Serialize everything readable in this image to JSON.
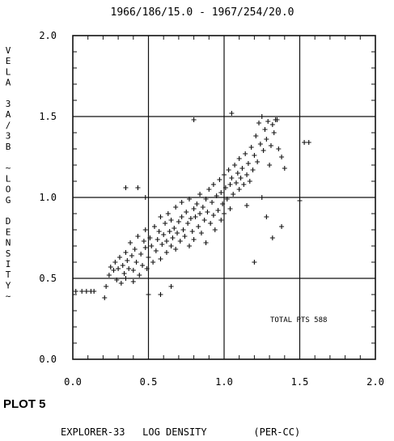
{
  "chart_data": {
    "type": "scatter",
    "title": "1966/186/15.0 - 1967/254/20.0",
    "plot_label": "PLOT 5",
    "xlabel": "EXPLORER-33   LOG DENSITY        (PER-CC)",
    "ylabel": "VELA 3A/3B ~LOG DENSITY~",
    "xlim": [
      0.0,
      2.0
    ],
    "ylim": [
      0.0,
      2.0
    ],
    "x_ticks": [
      "0.0",
      "0.5",
      "1.0",
      "1.5",
      "2.0"
    ],
    "y_ticks": [
      "0.0",
      "0.5",
      "1.0",
      "1.5",
      "2.0"
    ],
    "grid": true,
    "marker": "+",
    "annotation": "TOTAL PTS  588",
    "points": [
      [
        0.02,
        0.42
      ],
      [
        0.06,
        0.42
      ],
      [
        0.09,
        0.42
      ],
      [
        0.12,
        0.42
      ],
      [
        0.14,
        0.42
      ],
      [
        0.21,
        0.38
      ],
      [
        0.22,
        0.45
      ],
      [
        0.24,
        0.52
      ],
      [
        0.25,
        0.57
      ],
      [
        0.27,
        0.55
      ],
      [
        0.28,
        0.6
      ],
      [
        0.29,
        0.49
      ],
      [
        0.3,
        0.56
      ],
      [
        0.31,
        0.63
      ],
      [
        0.32,
        0.47
      ],
      [
        0.33,
        0.58
      ],
      [
        0.34,
        0.53
      ],
      [
        0.35,
        0.66
      ],
      [
        0.35,
        0.5
      ],
      [
        0.36,
        0.61
      ],
      [
        0.37,
        0.56
      ],
      [
        0.38,
        0.72
      ],
      [
        0.39,
        0.64
      ],
      [
        0.4,
        0.55
      ],
      [
        0.4,
        0.48
      ],
      [
        0.41,
        0.68
      ],
      [
        0.42,
        0.6
      ],
      [
        0.43,
        0.76
      ],
      [
        0.44,
        0.52
      ],
      [
        0.45,
        0.65
      ],
      [
        0.46,
        0.58
      ],
      [
        0.47,
        0.73
      ],
      [
        0.48,
        0.69
      ],
      [
        0.48,
        0.8
      ],
      [
        0.49,
        0.56
      ],
      [
        0.5,
        0.63
      ],
      [
        0.51,
        0.75
      ],
      [
        0.52,
        0.7
      ],
      [
        0.53,
        0.6
      ],
      [
        0.54,
        0.82
      ],
      [
        0.55,
        0.67
      ],
      [
        0.56,
        0.74
      ],
      [
        0.57,
        0.79
      ],
      [
        0.58,
        0.62
      ],
      [
        0.58,
        0.88
      ],
      [
        0.59,
        0.71
      ],
      [
        0.6,
        0.77
      ],
      [
        0.61,
        0.84
      ],
      [
        0.62,
        0.66
      ],
      [
        0.62,
        0.73
      ],
      [
        0.63,
        0.9
      ],
      [
        0.64,
        0.79
      ],
      [
        0.65,
        0.7
      ],
      [
        0.65,
        0.86
      ],
      [
        0.66,
        0.75
      ],
      [
        0.67,
        0.81
      ],
      [
        0.68,
        0.94
      ],
      [
        0.68,
        0.68
      ],
      [
        0.69,
        0.78
      ],
      [
        0.7,
        0.85
      ],
      [
        0.71,
        0.73
      ],
      [
        0.72,
        0.88
      ],
      [
        0.72,
        0.97
      ],
      [
        0.73,
        0.8
      ],
      [
        0.74,
        0.76
      ],
      [
        0.75,
        0.91
      ],
      [
        0.76,
        0.84
      ],
      [
        0.77,
        0.7
      ],
      [
        0.77,
        0.99
      ],
      [
        0.78,
        0.87
      ],
      [
        0.79,
        0.79
      ],
      [
        0.8,
        0.93
      ],
      [
        0.8,
        0.74
      ],
      [
        0.81,
        0.88
      ],
      [
        0.82,
        0.96
      ],
      [
        0.83,
        0.82
      ],
      [
        0.84,
        0.9
      ],
      [
        0.84,
        1.02
      ],
      [
        0.85,
        0.78
      ],
      [
        0.86,
        0.94
      ],
      [
        0.87,
        0.86
      ],
      [
        0.88,
        0.99
      ],
      [
        0.88,
        0.72
      ],
      [
        0.89,
        0.91
      ],
      [
        0.9,
        1.05
      ],
      [
        0.91,
        0.84
      ],
      [
        0.92,
        0.97
      ],
      [
        0.93,
        0.89
      ],
      [
        0.93,
        1.08
      ],
      [
        0.94,
        0.8
      ],
      [
        0.95,
        1.01
      ],
      [
        0.96,
        0.92
      ],
      [
        0.97,
        1.11
      ],
      [
        0.98,
        0.86
      ],
      [
        0.98,
        1.03
      ],
      [
        0.99,
        0.96
      ],
      [
        1.0,
        1.14
      ],
      [
        1.0,
        0.9
      ],
      [
        1.01,
        1.06
      ],
      [
        1.02,
        0.99
      ],
      [
        1.03,
        1.17
      ],
      [
        1.04,
        1.08
      ],
      [
        1.04,
        0.93
      ],
      [
        1.05,
        1.12
      ],
      [
        1.06,
        1.02
      ],
      [
        1.07,
        1.2
      ],
      [
        1.08,
        1.09
      ],
      [
        1.09,
        1.15
      ],
      [
        1.1,
        1.05
      ],
      [
        1.1,
        1.24
      ],
      [
        1.11,
        1.12
      ],
      [
        1.12,
        1.18
      ],
      [
        1.13,
        1.08
      ],
      [
        1.14,
        1.27
      ],
      [
        1.15,
        1.14
      ],
      [
        1.16,
        1.21
      ],
      [
        1.17,
        1.1
      ],
      [
        1.18,
        1.31
      ],
      [
        1.19,
        1.17
      ],
      [
        1.2,
        1.26
      ],
      [
        1.21,
        1.38
      ],
      [
        1.22,
        1.22
      ],
      [
        1.23,
        1.46
      ],
      [
        1.24,
        1.33
      ],
      [
        1.25,
        1.5
      ],
      [
        1.26,
        1.29
      ],
      [
        1.27,
        1.42
      ],
      [
        1.28,
        1.36
      ],
      [
        1.29,
        1.47
      ],
      [
        1.3,
        1.2
      ],
      [
        1.31,
        1.32
      ],
      [
        1.32,
        1.45
      ],
      [
        1.33,
        1.4
      ],
      [
        1.34,
        1.48
      ],
      [
        1.35,
        1.48
      ],
      [
        1.36,
        1.3
      ],
      [
        1.38,
        1.25
      ],
      [
        1.4,
        1.18
      ],
      [
        1.2,
        0.6
      ],
      [
        1.05,
        1.52
      ],
      [
        0.8,
        1.48
      ],
      [
        0.5,
        0.4
      ],
      [
        0.58,
        0.4
      ],
      [
        0.35,
        1.06
      ],
      [
        0.43,
        1.06
      ],
      [
        0.48,
        1.0
      ],
      [
        0.65,
        0.45
      ],
      [
        1.5,
        0.98
      ],
      [
        1.53,
        1.34
      ],
      [
        1.56,
        1.34
      ],
      [
        1.28,
        0.88
      ],
      [
        1.38,
        0.82
      ],
      [
        1.32,
        0.75
      ],
      [
        1.15,
        0.95
      ],
      [
        1.25,
        1.0
      ]
    ]
  }
}
